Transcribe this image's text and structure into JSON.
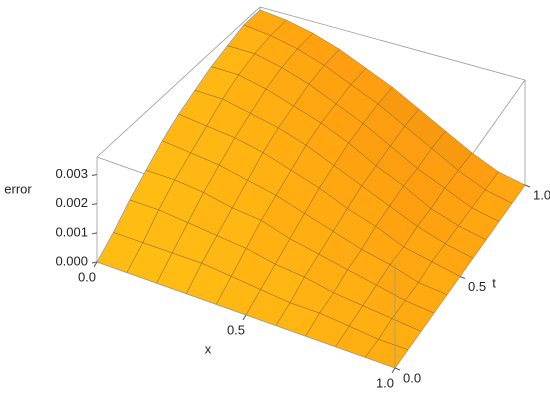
{
  "chart_data": {
    "type": "surface",
    "x_label": "x",
    "t_label": "t",
    "z_label": "error",
    "color": "#f6ae12",
    "x": [
      0,
      0.1,
      0.2,
      0.3,
      0.4,
      0.5,
      0.6,
      0.7,
      0.8,
      0.9,
      1
    ],
    "t": [
      0,
      0.1,
      0.2,
      0.3,
      0.4,
      0.5,
      0.6,
      0.7,
      0.8,
      0.9,
      1
    ],
    "z": [
      [
        0,
        0,
        0,
        0,
        0,
        0,
        0,
        0,
        0,
        0,
        0
      ],
      [
        0.0005,
        0.0005,
        0.0005,
        0.0005,
        0.0004,
        0.0003,
        0.0002,
        0.0002,
        0.0001,
        0,
        0
      ],
      [
        0.0011,
        0.0011,
        0.001,
        0.0009,
        0.0008,
        0.0006,
        0.0005,
        0.0003,
        0.0002,
        0.0001,
        0
      ],
      [
        0.0016,
        0.0016,
        0.0015,
        0.0013,
        0.0012,
        0.0009,
        0.0007,
        0.0005,
        0.0003,
        0.0001,
        0
      ],
      [
        0.0021,
        0.002,
        0.0019,
        0.0017,
        0.0015,
        0.0012,
        0.0009,
        0.0006,
        0.0004,
        0.0001,
        0
      ],
      [
        0.0025,
        0.0024,
        0.0023,
        0.0021,
        0.0018,
        0.0015,
        0.0011,
        0.0008,
        0.0004,
        0.0002,
        0
      ],
      [
        0.0028,
        0.0028,
        0.0026,
        0.0024,
        0.0021,
        0.0017,
        0.0013,
        0.0009,
        0.0005,
        0.0002,
        0
      ],
      [
        0.0031,
        0.0031,
        0.0029,
        0.0026,
        0.0023,
        0.0019,
        0.0014,
        0.001,
        0.0005,
        0.0002,
        0
      ],
      [
        0.0033,
        0.0033,
        0.0031,
        0.0028,
        0.0024,
        0.002,
        0.0015,
        0.001,
        0.0006,
        0.0002,
        0
      ],
      [
        0.0035,
        0.0034,
        0.0032,
        0.0029,
        0.0025,
        0.0021,
        0.0016,
        0.0011,
        0.0006,
        0.0002,
        0
      ],
      [
        0.0035,
        0.0034,
        0.0032,
        0.0029,
        0.0025,
        0.0021,
        0.0016,
        0.0011,
        0.0006,
        0.0002,
        0
      ]
    ],
    "xlim": [
      0,
      1
    ],
    "tlim": [
      0,
      1
    ],
    "zlim": [
      0,
      0.0036
    ],
    "xticks": [
      {
        "value": 0,
        "label": "0.0"
      },
      {
        "value": 0.5,
        "label": "0.5"
      },
      {
        "value": 1,
        "label": "1.0"
      }
    ],
    "tticks": [
      {
        "value": 0,
        "label": "0.0"
      },
      {
        "value": 0.5,
        "label": "0.5"
      },
      {
        "value": 1,
        "label": "1.0"
      }
    ],
    "zticks": [
      {
        "value": 0,
        "label": "0.000"
      },
      {
        "value": 0.001,
        "label": "0.001"
      },
      {
        "value": 0.002,
        "label": "0.002"
      },
      {
        "value": 0.003,
        "label": "0.003"
      }
    ]
  }
}
